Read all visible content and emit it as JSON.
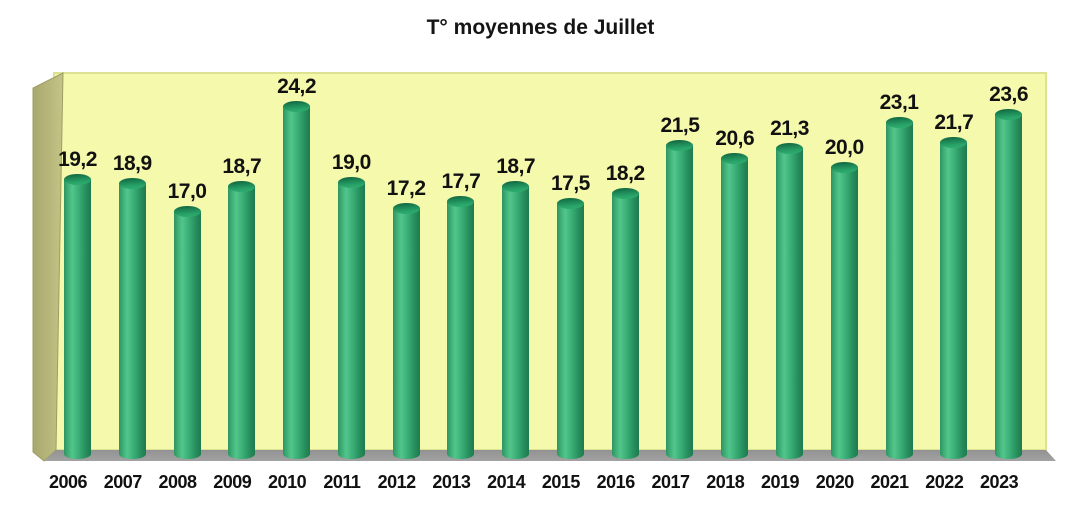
{
  "title": "T° moyennes de Juillet",
  "chart_data": {
    "type": "bar",
    "title": "T° moyennes de Juillet",
    "categories": [
      "2006",
      "2007",
      "2008",
      "2009",
      "2010",
      "2011",
      "2012",
      "2013",
      "2014",
      "2015",
      "2016",
      "2017",
      "2018",
      "2019",
      "2020",
      "2021",
      "2022",
      "2023"
    ],
    "values": [
      19.2,
      18.9,
      17.0,
      18.7,
      24.2,
      19.0,
      17.2,
      17.7,
      18.7,
      17.5,
      18.2,
      21.5,
      20.6,
      21.3,
      20.0,
      23.1,
      21.7,
      23.6
    ],
    "value_labels": [
      "19,2",
      "18,9",
      "17,0",
      "18,7",
      "24,2",
      "19,0",
      "17,2",
      "17,7",
      "18,7",
      "17,5",
      "18,2",
      "21,5",
      "20,6",
      "21,3",
      "20,0",
      "23,1",
      "21,7",
      "23,6"
    ],
    "xlabel": "",
    "ylabel": "",
    "ylim": [
      0,
      26
    ],
    "grid": false,
    "legend": "none",
    "style": "3d-cylinder",
    "decimal_separator": ","
  },
  "colors": {
    "plot_background": "#f5f9ab",
    "plot_border": "#dde292",
    "left_wall": "#b3b277",
    "left_wall_light": "#c4c487",
    "floor": "#9a9a9a",
    "bar_main": "#3cb179",
    "bar_highlight": "#52c68b",
    "bar_dark": "#1d7b4e",
    "label_text": "#111111",
    "page_background": "#ffffff"
  }
}
